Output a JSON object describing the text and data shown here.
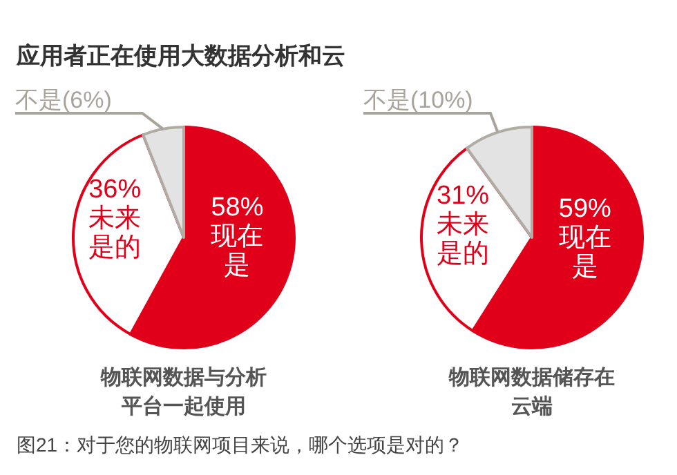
{
  "chart_data": [
    {
      "type": "pie",
      "title": "物联网数据与分析平台一起使用",
      "categories": [
        "现在是",
        "未来是的",
        "不是"
      ],
      "values": [
        58,
        36,
        6
      ],
      "value_labels": [
        "58%",
        "36%",
        "(6%)"
      ],
      "colors": [
        "#e1001a",
        "#ffffff",
        "#e3e3e3"
      ],
      "annotations": [
        "应用者正在使用大数据分析和云"
      ]
    },
    {
      "type": "pie",
      "title": "物联网数据储存在云端",
      "categories": [
        "现在是",
        "未来是的",
        "不是"
      ],
      "values": [
        59,
        31,
        10
      ],
      "value_labels": [
        "59%",
        "31%",
        "(10%)"
      ],
      "colors": [
        "#e1001a",
        "#ffffff",
        "#e3e3e3"
      ],
      "annotations": [
        "图21：对于您的物联网项目来说，哪个选项是对的？"
      ]
    }
  ]
}
